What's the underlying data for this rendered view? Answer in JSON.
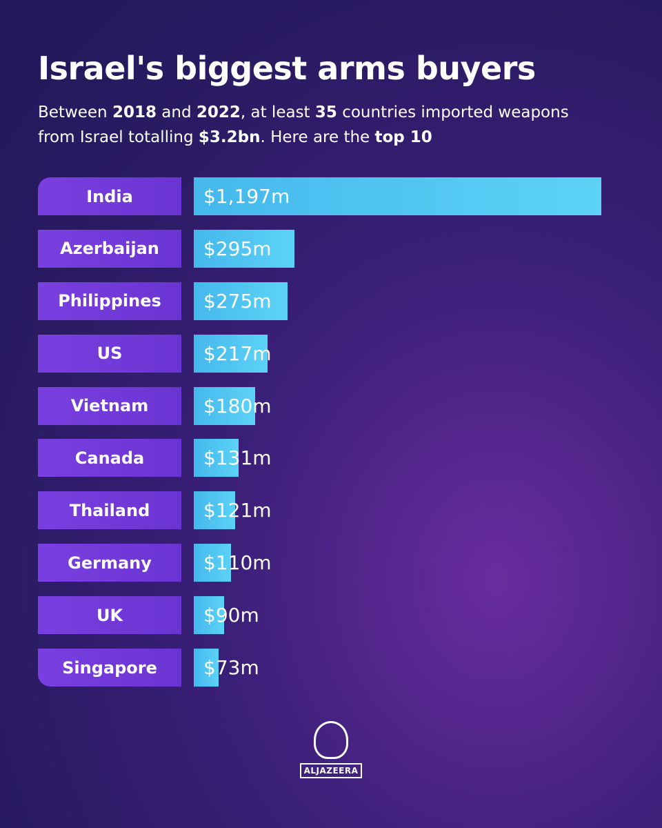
{
  "chart_data": {
    "type": "bar",
    "title": "Israel's biggest arms buyers",
    "subtitle": [
      "Between ",
      "2018",
      " and ",
      "2022",
      ", at least ",
      "35",
      " countries imported weapons from Israel totalling ",
      "$3.2bn",
      ". Here are the ",
      "top 10"
    ],
    "categories": [
      "India",
      "Azerbaijan",
      "Philippines",
      "US",
      "Vietnam",
      "Canada",
      "Thailand",
      "Germany",
      "UK",
      "Singapore"
    ],
    "values": [
      1197,
      295,
      275,
      217,
      180,
      131,
      121,
      110,
      90,
      73
    ],
    "value_labels": [
      "$1,197m",
      "$295m",
      "$275m",
      "$217m",
      "$180m",
      "$131m",
      "$121m",
      "$110m",
      "$90m",
      "$73m"
    ],
    "logo": "ALJAZEERA"
  }
}
